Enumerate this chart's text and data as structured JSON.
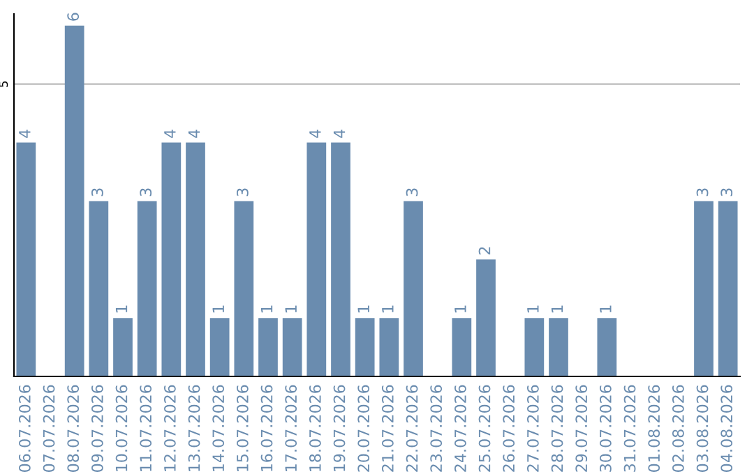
{
  "chart_data": {
    "type": "bar",
    "categories": [
      "06.07.2026",
      "07.07.2026",
      "08.07.2026",
      "09.07.2026",
      "10.07.2026",
      "11.07.2026",
      "12.07.2026",
      "13.07.2026",
      "14.07.2026",
      "15.07.2026",
      "16.07.2026",
      "17.07.2026",
      "18.07.2026",
      "19.07.2026",
      "20.07.2026",
      "21.07.2026",
      "22.07.2026",
      "23.07.2026",
      "24.07.2026",
      "25.07.2026",
      "26.07.2026",
      "27.07.2026",
      "28.07.2026",
      "29.07.2026",
      "30.07.2026",
      "31.07.2026",
      "01.08.2026",
      "02.08.2026",
      "03.08.2026",
      "04.08.2026"
    ],
    "values": [
      4,
      0,
      6,
      3,
      1,
      3,
      4,
      4,
      1,
      3,
      1,
      1,
      4,
      4,
      1,
      1,
      3,
      0,
      1,
      2,
      0,
      1,
      1,
      0,
      1,
      0,
      0,
      0,
      3,
      3
    ],
    "value_labels": [
      "4",
      null,
      "6",
      "3",
      "1",
      "3",
      "4",
      "4",
      "1",
      "3",
      "1",
      "1",
      "4",
      "4",
      "1",
      "1",
      "3",
      null,
      "1",
      "2",
      null,
      "1",
      "1",
      null,
      "1",
      null,
      null,
      null,
      "3",
      "3"
    ],
    "color": "#6a8caf",
    "ylim": [
      0,
      6.2
    ],
    "yticks": [
      5
    ],
    "grid": "y"
  }
}
